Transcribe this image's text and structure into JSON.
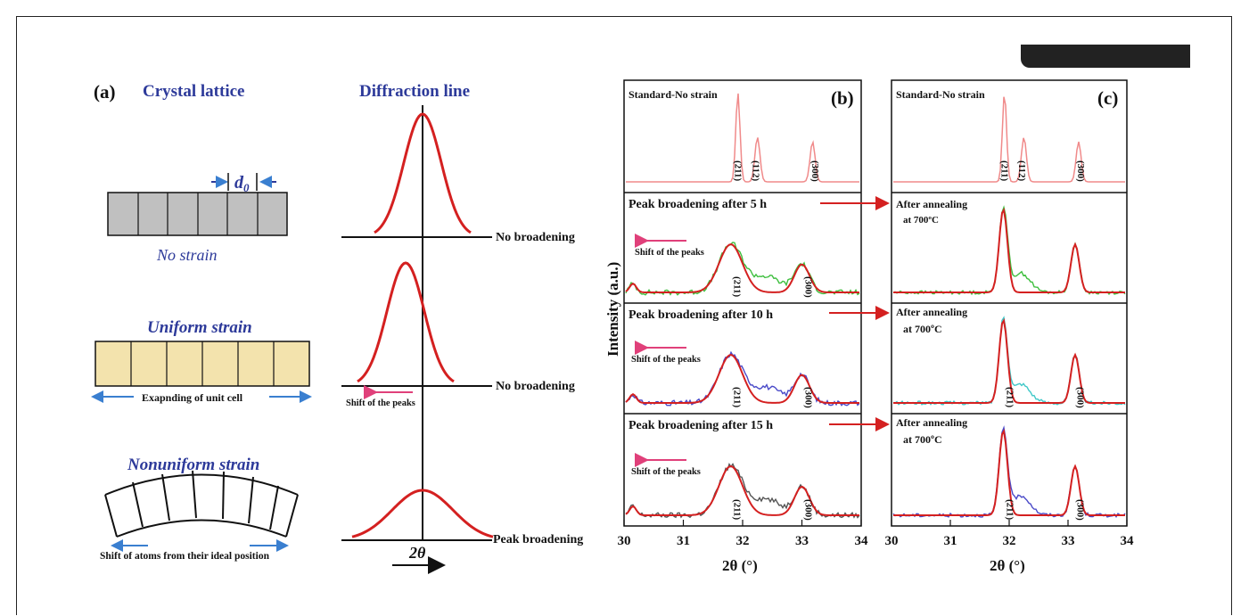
{
  "panel_a": {
    "label": "(a)",
    "crystal_title": "Crystal lattice",
    "diffraction_title": "Diffraction line",
    "d0_label": "d",
    "d0_sub": "0",
    "no_strain": "No strain",
    "uniform_strain": "Uniform strain",
    "expanding": "Exapnding of unit cell",
    "nonuniform_strain": "Nonuniform strain",
    "shift_atoms": "Shift of atoms from their ideal position",
    "no_broadening_1": "No broadening",
    "no_broadening_2": "No broadening",
    "peak_broadening": "Peak broadening",
    "shift_peaks": "Shift of the peaks",
    "two_theta": "2θ"
  },
  "panel_b": {
    "label": "(b)",
    "rows": [
      {
        "title": "Standard-No strain"
      },
      {
        "title": "Peak broadening after 5 h",
        "note": "Shift of the peaks"
      },
      {
        "title": "Peak broadening after 10 h",
        "note": "Shift of the peaks"
      },
      {
        "title": "Peak broadening after 15 h",
        "note": "Shift of the peaks"
      }
    ],
    "ylabel": "Intensity (a.u.)",
    "xlabel": "2θ (°)"
  },
  "panel_c": {
    "label": "(c)",
    "rows": [
      {
        "title": "Standard-No strain"
      },
      {
        "title": "After annealing",
        "sub": "at 700ºC"
      },
      {
        "title": "After annealing",
        "sub": "at 700ºC"
      },
      {
        "title": "After annealing",
        "sub": "at 700ºC"
      }
    ],
    "xlabel": "2θ (°)"
  },
  "peak_labels": {
    "p211": "(211)",
    "p112": "(112)",
    "p300": "(300)"
  },
  "colors": {
    "title_blue": "#2d3a9a",
    "curve_red": "#d42020",
    "pink": "#e0407a",
    "green": "#3fbf3f",
    "blue": "#4a4ac8",
    "cyan": "#40c8c8",
    "gray": "#555555",
    "lattice_gray": "#c0c0c0",
    "lattice_tan": "#f3e3ad"
  },
  "chart_data": [
    {
      "type": "line",
      "panel": "(b)",
      "xlim": [
        30,
        34
      ],
      "x_ticks": [
        30,
        31,
        32,
        33,
        34
      ],
      "xlabel": "2θ (°)",
      "ylabel": "Intensity (a.u.)",
      "series": [
        {
          "row": 1,
          "peaks": [
            {
              "x": 31.9,
              "label": "(211)"
            },
            {
              "x": 32.2,
              "label": "(112)"
            },
            {
              "x": 33.2,
              "label": "(300)"
            }
          ]
        },
        {
          "row": 2,
          "peaks": [
            {
              "x": 31.8,
              "label": "(211)"
            },
            {
              "x": 33.0,
              "label": "(300)"
            }
          ]
        },
        {
          "row": 3,
          "peaks": [
            {
              "x": 31.8,
              "label": "(211)"
            },
            {
              "x": 33.0,
              "label": "(300)"
            }
          ]
        },
        {
          "row": 4,
          "peaks": [
            {
              "x": 31.8,
              "label": "(211)"
            },
            {
              "x": 33.0,
              "label": "(300)"
            }
          ]
        }
      ]
    },
    {
      "type": "line",
      "panel": "(c)",
      "xlim": [
        30,
        34
      ],
      "x_ticks": [
        30,
        31,
        32,
        33,
        34
      ],
      "xlabel": "2θ (°)",
      "series": [
        {
          "row": 1,
          "peaks": [
            {
              "x": 31.9,
              "label": "(211)"
            },
            {
              "x": 32.2,
              "label": "(112)"
            },
            {
              "x": 33.2,
              "label": "(300)"
            }
          ]
        },
        {
          "row": 2,
          "peaks": [
            {
              "x": 31.9
            },
            {
              "x": 33.1
            }
          ]
        },
        {
          "row": 3,
          "peaks": [
            {
              "x": 31.9,
              "label": "(211)"
            },
            {
              "x": 33.1,
              "label": "(300)"
            }
          ]
        },
        {
          "row": 4,
          "peaks": [
            {
              "x": 31.9,
              "label": "(211)"
            },
            {
              "x": 33.1,
              "label": "(300)"
            }
          ]
        }
      ]
    }
  ]
}
